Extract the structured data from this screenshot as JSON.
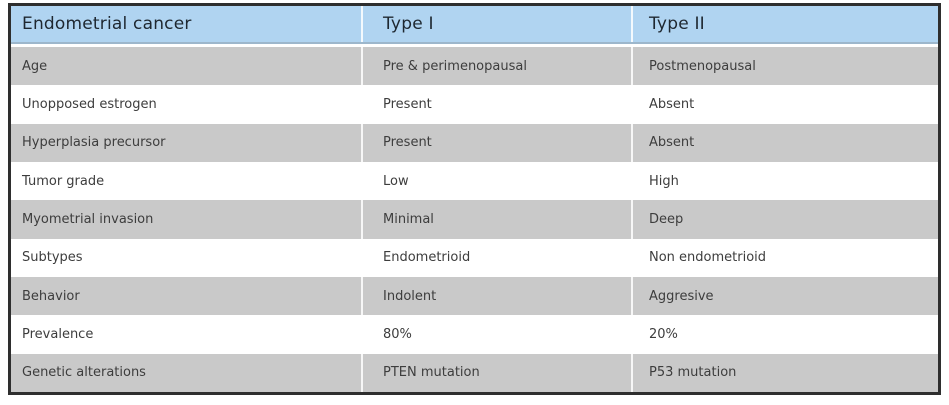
{
  "page": {
    "background_color": "#ffffff"
  },
  "table": {
    "title": "Endometrial cancer",
    "colors": {
      "header_bg": "#b0d4f1",
      "header_border": "#9db7cc",
      "alt_row_bg": "#c9c9c9",
      "row_bg": "#ffffff",
      "outer_border": "#2e2e2e",
      "header_text": "#1e2730",
      "body_text": "#3d3d3d"
    },
    "headers": [
      "Endometrial cancer",
      "Type I",
      "Type II"
    ],
    "rows": [
      [
        "Age",
        "Pre & perimenopausal",
        "Postmenopausal"
      ],
      [
        "Unopposed estrogen",
        "Present",
        "Absent"
      ],
      [
        "Hyperplasia precursor",
        "Present",
        "Absent"
      ],
      [
        "Tumor grade",
        "Low",
        "High"
      ],
      [
        "Myometrial invasion",
        "Minimal",
        "Deep"
      ],
      [
        "Subtypes",
        "Endometrioid",
        "Non endometrioid"
      ],
      [
        "Behavior",
        "Indolent",
        "Aggresive"
      ],
      [
        "Prevalence",
        "80%",
        "20%"
      ],
      [
        "Genetic alterations",
        "PTEN mutation",
        "P53 mutation"
      ]
    ]
  }
}
